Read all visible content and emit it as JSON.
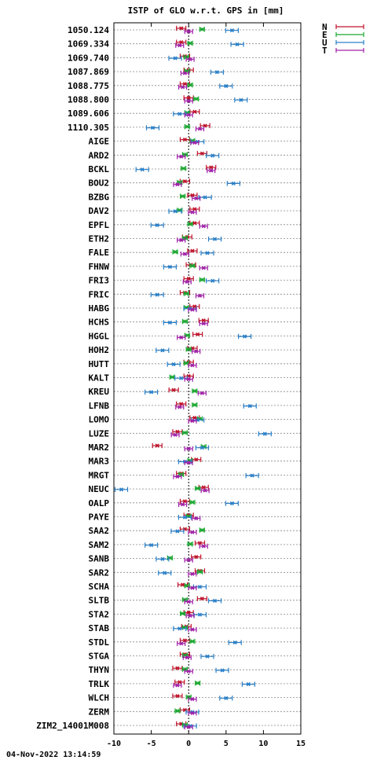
{
  "chart_data": {
    "type": "scatter",
    "title": "ISTP of GLO w.r.t. GPS in [mm]",
    "xlim": [
      -10,
      15
    ],
    "xticks": [
      -10,
      -5,
      0,
      5,
      10,
      15
    ],
    "grid": true,
    "legend_position": "top-right, outside plot",
    "series": [
      {
        "name": "N",
        "color": "#c0142c"
      },
      {
        "name": "E",
        "color": "#1aa830"
      },
      {
        "name": "U",
        "color": "#2a80c8"
      },
      {
        "name": "T",
        "color": "#a020a8"
      }
    ],
    "stations": [
      {
        "label": "1050.124",
        "N": -1.0,
        "E": 1.8,
        "U": 5.8,
        "T": 0.0
      },
      {
        "label": "1069.334",
        "N": -1.0,
        "E": 0.2,
        "U": 6.5,
        "T": -1.2
      },
      {
        "label": "1069.740",
        "N": -0.5,
        "E": -0.3,
        "U": -1.8,
        "T": 0.2
      },
      {
        "label": "1087.869",
        "N": 0.0,
        "E": -0.2,
        "U": 3.8,
        "T": -0.5
      },
      {
        "label": "1088.775",
        "N": -0.5,
        "E": 0.2,
        "U": 5.0,
        "T": -0.8
      },
      {
        "label": "1088.800",
        "N": 0.0,
        "E": 1.0,
        "U": 7.0,
        "T": 0.0
      },
      {
        "label": "1089.606",
        "N": 0.8,
        "E": -0.2,
        "U": -1.2,
        "T": 0.0
      },
      {
        "label": "1110.305",
        "N": 2.2,
        "E": -0.2,
        "U": -4.8,
        "T": 1.5
      },
      {
        "label": "AIGE",
        "N": -0.5,
        "E": 0.5,
        "U": 1.2,
        "T": 0.8
      },
      {
        "label": "ARD2",
        "N": 1.8,
        "E": -0.5,
        "U": 3.2,
        "T": -1.0
      },
      {
        "label": "BCKL",
        "N": 3.0,
        "E": -0.7,
        "U": -6.2,
        "T": 3.0
      },
      {
        "label": "BOU2",
        "N": -0.5,
        "E": -1.2,
        "U": 6.0,
        "T": -1.5
      },
      {
        "label": "BZBG",
        "N": 0.5,
        "E": -0.8,
        "U": 2.2,
        "T": 1.0
      },
      {
        "label": "DAV2",
        "N": 0.8,
        "E": -1.2,
        "U": -1.8,
        "T": 0.5
      },
      {
        "label": "EPFL",
        "N": 0.8,
        "E": 0.2,
        "U": -4.2,
        "T": 2.0
      },
      {
        "label": "ETH2",
        "N": -0.2,
        "E": -0.5,
        "U": 3.5,
        "T": -1.0
      },
      {
        "label": "FALE",
        "N": 0.5,
        "E": -1.8,
        "U": 2.5,
        "T": -0.5
      },
      {
        "label": "FHNW",
        "N": 0.3,
        "E": 0.5,
        "U": -2.5,
        "T": 2.0
      },
      {
        "label": "FRI3",
        "N": 0.0,
        "E": 1.8,
        "U": 3.2,
        "T": -0.2
      },
      {
        "label": "FRIC",
        "N": -0.5,
        "E": -0.3,
        "U": -4.2,
        "T": 1.5
      },
      {
        "label": "HABG",
        "N": 0.8,
        "E": -0.3,
        "U": 0.2,
        "T": 0.5
      },
      {
        "label": "HCHS",
        "N": 2.0,
        "E": -0.5,
        "U": -2.5,
        "T": 2.0
      },
      {
        "label": "HGGL",
        "N": 1.2,
        "E": -0.2,
        "U": 7.5,
        "T": -1.0
      },
      {
        "label": "HOH2",
        "N": 0.5,
        "E": 0.0,
        "U": -3.5,
        "T": 1.0
      },
      {
        "label": "HUTT",
        "N": 0.0,
        "E": -0.3,
        "U": -2.0,
        "T": 0.5
      },
      {
        "label": "KALT",
        "N": 0.0,
        "E": -2.2,
        "U": -1.0,
        "T": 0.0
      },
      {
        "label": "KREU",
        "N": -2.0,
        "E": 0.8,
        "U": -5.0,
        "T": 1.8
      },
      {
        "label": "LFNB",
        "N": -1.0,
        "E": 0.8,
        "U": 8.2,
        "T": -1.2
      },
      {
        "label": "LOMO",
        "N": 0.8,
        "E": 1.5,
        "U": 1.2,
        "T": 0.5
      },
      {
        "label": "LUZE",
        "N": -1.5,
        "E": -0.5,
        "U": 10.2,
        "T": -1.8
      },
      {
        "label": "MAR2",
        "N": -4.2,
        "E": 2.0,
        "U": 1.8,
        "T": 0.0
      },
      {
        "label": "MAR3",
        "N": 1.0,
        "E": 0.2,
        "U": -0.5,
        "T": 0.0
      },
      {
        "label": "MRGT",
        "N": -1.0,
        "E": -1.0,
        "U": 8.5,
        "T": -1.5
      },
      {
        "label": "NEUC",
        "N": 2.0,
        "E": 1.2,
        "U": -9.0,
        "T": 2.2
      },
      {
        "label": "OALP",
        "N": -0.5,
        "E": 0.5,
        "U": 5.8,
        "T": -0.8
      },
      {
        "label": "PAYE",
        "N": 0.0,
        "E": 0.0,
        "U": -0.5,
        "T": 1.0
      },
      {
        "label": "SAA2",
        "N": -0.5,
        "E": 1.8,
        "U": -1.5,
        "T": 0.5
      },
      {
        "label": "SAM2",
        "N": 1.5,
        "E": 0.2,
        "U": -5.0,
        "T": 2.0
      },
      {
        "label": "SANB",
        "N": 1.0,
        "E": -2.5,
        "U": -3.5,
        "T": 0.0
      },
      {
        "label": "SAR2",
        "N": 1.5,
        "E": 1.5,
        "U": -3.2,
        "T": 0.5
      },
      {
        "label": "SCHA",
        "N": -0.8,
        "E": -0.2,
        "U": 1.5,
        "T": 0.5
      },
      {
        "label": "SLTB",
        "N": 1.8,
        "E": -0.5,
        "U": 3.5,
        "T": 0.0
      },
      {
        "label": "STA2",
        "N": 0.0,
        "E": -0.8,
        "U": 1.5,
        "T": 0.2
      },
      {
        "label": "STAB",
        "N": -0.3,
        "E": -0.5,
        "U": -1.2,
        "T": 0.5
      },
      {
        "label": "STDL",
        "N": -0.5,
        "E": 0.5,
        "U": 6.2,
        "T": -1.0
      },
      {
        "label": "STGA",
        "N": -0.5,
        "E": -0.5,
        "U": 2.5,
        "T": -0.2
      },
      {
        "label": "THYN",
        "N": -1.5,
        "E": -0.5,
        "U": 4.5,
        "T": 0.0
      },
      {
        "label": "TRLK",
        "N": -1.2,
        "E": 1.2,
        "U": 8.0,
        "T": -1.5
      },
      {
        "label": "WLCH",
        "N": -1.5,
        "E": 0.0,
        "U": 5.0,
        "T": 0.5
      },
      {
        "label": "ZERM",
        "N": -0.5,
        "E": -1.5,
        "U": 0.5,
        "T": 0.5
      },
      {
        "label": "ZIM2_14001M008",
        "N": -1.0,
        "E": -0.5,
        "U": 0.2,
        "T": 0.0
      }
    ]
  },
  "footer": {
    "timestamp": "04-Nov-2022 13:14:59"
  }
}
